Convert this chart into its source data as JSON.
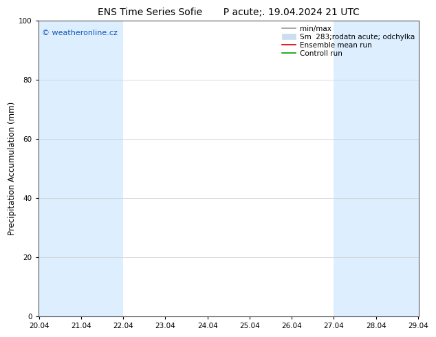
{
  "title": "ENS Time Series Sofie       P acute;. 19.04.2024 21 UTC",
  "ylabel": "Precipitation Accumulation (mm)",
  "watermark": "© weatheronline.cz",
  "watermark_color": "#1155bb",
  "ylim": [
    0,
    100
  ],
  "yticks": [
    0,
    20,
    40,
    60,
    80,
    100
  ],
  "xtick_labels": [
    "20.04",
    "21.04",
    "22.04",
    "23.04",
    "24.04",
    "25.04",
    "26.04",
    "27.04",
    "28.04",
    "29.04"
  ],
  "xlim_min": 0,
  "xlim_max": 9,
  "shaded_bands": [
    [
      0,
      1
    ],
    [
      1,
      2
    ],
    [
      7,
      8
    ],
    [
      8,
      9
    ],
    [
      9,
      9.5
    ]
  ],
  "band_color": "#ddeeff",
  "background_color": "#ffffff",
  "legend_label_minmax": "min/max",
  "legend_label_std": "Sm  283;rodatn acute; odchylka",
  "legend_label_mean": "Ensemble mean run",
  "legend_label_ctrl": "Controll run",
  "legend_color_minmax": "#999999",
  "legend_color_std": "#ccddf0",
  "legend_color_mean": "#cc0000",
  "legend_color_ctrl": "#009900",
  "title_fontsize": 10,
  "tick_fontsize": 7.5,
  "ylabel_fontsize": 8.5,
  "legend_fontsize": 7.5
}
